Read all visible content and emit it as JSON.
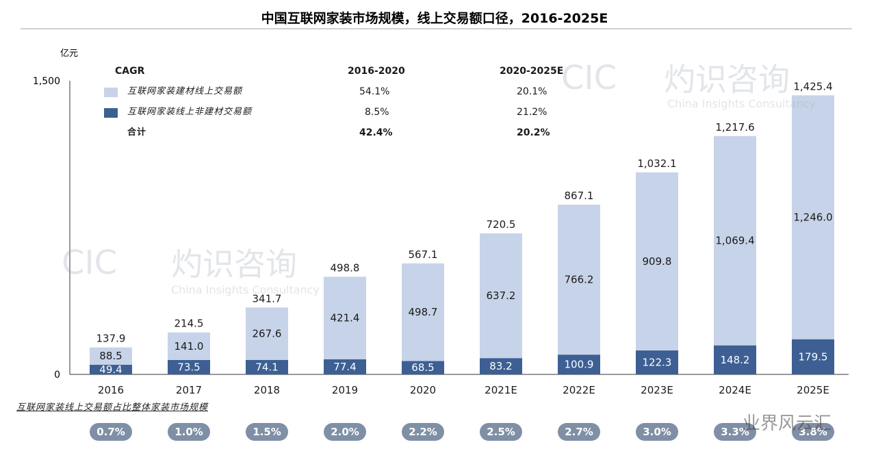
{
  "chart_data": {
    "type": "bar",
    "stacked": true,
    "title": "中国互联网家装市场规模，线上交易额口径，2016-2025E",
    "ylabel": "亿元",
    "ylim": [
      0,
      1500
    ],
    "yticks": [
      "0",
      "1,500"
    ],
    "categories": [
      "2016",
      "2017",
      "2018",
      "2019",
      "2020",
      "2021E",
      "2022E",
      "2023E",
      "2024E",
      "2025E"
    ],
    "series": [
      {
        "name": "互联网家装线上非建材交易额",
        "color": "#3d5f93",
        "values": [
          49.4,
          73.5,
          74.1,
          77.4,
          68.5,
          83.2,
          100.9,
          122.3,
          148.2,
          179.5
        ],
        "labels": [
          "49.4",
          "73.5",
          "74.1",
          "77.4",
          "68.5",
          "83.2",
          "100.9",
          "122.3",
          "148.2",
          "179.5"
        ]
      },
      {
        "name": "互联网家装建材线上交易额",
        "color": "#c7d3e8",
        "values": [
          88.5,
          141.0,
          267.6,
          421.4,
          498.7,
          637.2,
          766.2,
          909.8,
          1069.4,
          1246.0
        ],
        "labels": [
          "88.5",
          "141.0",
          "267.6",
          "421.4",
          "498.7",
          "637.2",
          "766.2",
          "909.8",
          "1,069.4",
          "1,246.0"
        ]
      }
    ],
    "totals": [
      137.9,
      214.5,
      341.7,
      498.8,
      567.1,
      720.5,
      867.1,
      1032.1,
      1217.6,
      1425.4
    ],
    "total_labels": [
      "137.9",
      "214.5",
      "341.7",
      "498.8",
      "567.1",
      "720.5",
      "867.1",
      "1,032.1",
      "1,217.6",
      "1,425.4"
    ],
    "cagr_table": {
      "header": [
        "CAGR",
        "2016-2020",
        "2020-2025E"
      ],
      "rows": [
        {
          "label": "互联网家装建材线上交易额",
          "a": "54.1%",
          "b": "20.1%",
          "swatch": "light"
        },
        {
          "label": "互联网家装线上非建材交易额",
          "a": "8.5%",
          "b": "21.2%",
          "swatch": "dark"
        },
        {
          "label": "合计",
          "a": "42.4%",
          "b": "20.2%",
          "swatch": "none"
        }
      ]
    },
    "share_caption": "互联网家装线上交易额占比整体家装市场规模",
    "share_values": [
      "0.7%",
      "1.0%",
      "1.5%",
      "2.0%",
      "2.2%",
      "2.5%",
      "2.7%",
      "3.0%",
      "3.3%",
      "3.8%"
    ]
  },
  "watermark": {
    "brand_cn": "灼识咨询",
    "brand_en": "China Insights Consultancy",
    "logo": "CIC",
    "corner": "业界风云汇"
  }
}
